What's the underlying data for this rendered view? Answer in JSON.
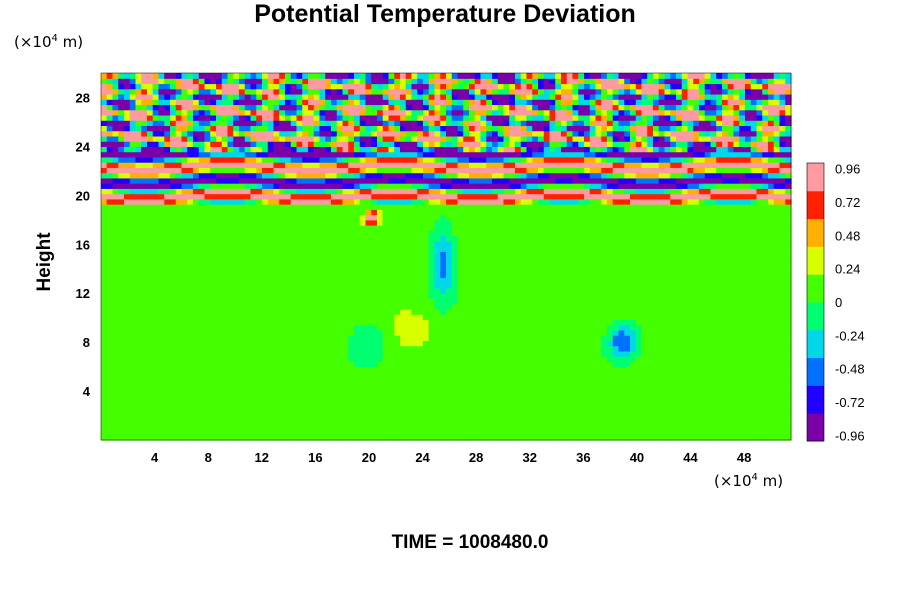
{
  "chart_data": {
    "type": "heatmap",
    "title": "Potential Temperature Deviation",
    "xlabel": "",
    "ylabel": "Height",
    "x_unit_prefix": "(×10",
    "x_unit_exp": "4",
    "x_unit_suffix": " m)",
    "y_unit_prefix": "(×10",
    "y_unit_exp": "4",
    "y_unit_suffix": " m)",
    "xlim": [
      0,
      51.5
    ],
    "ylim": [
      0,
      30
    ],
    "xticks": [
      "4",
      "8",
      "12",
      "16",
      "20",
      "24",
      "28",
      "32",
      "36",
      "40",
      "44",
      "48"
    ],
    "yticks": [
      "4",
      "8",
      "12",
      "16",
      "20",
      "24",
      "28"
    ],
    "colorbar": {
      "range": [
        -1,
        1
      ],
      "ticks": [
        "0.96",
        "0.72",
        "0.48",
        "0.24",
        "0",
        "-0.24",
        "-0.48",
        "-0.72",
        "-0.96"
      ],
      "colors": [
        "#7a00a8",
        "#2000ff",
        "#0070ff",
        "#00d8e8",
        "#00ff70",
        "#44ff00",
        "#d8ff00",
        "#ffb000",
        "#ff2000",
        "#ff9aa0"
      ]
    },
    "fields": {
      "background_value": 0.1,
      "band_bottom": 19.5,
      "band_top": 30
    }
  },
  "footer": {
    "time_text": "TIME = 1008480.0"
  }
}
